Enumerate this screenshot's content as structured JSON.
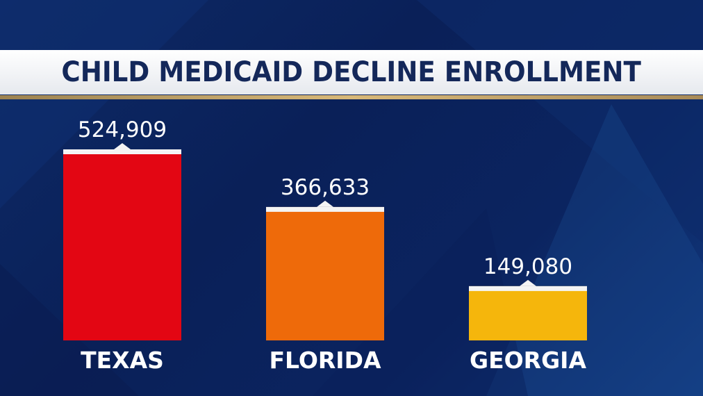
{
  "header": {
    "title": "CHILD MEDICAID DECLINE ENROLLMENT"
  },
  "chart_data": {
    "type": "bar",
    "title": "CHILD MEDICAID DECLINE ENROLLMENT",
    "categories": [
      "TEXAS",
      "FLORIDA",
      "GEORGIA"
    ],
    "values": [
      524909,
      366633,
      149080
    ],
    "value_labels": [
      "524,909",
      "366,633",
      "149,080"
    ],
    "colors": [
      "#e30613",
      "#ee6a0a",
      "#f5b60c"
    ],
    "ylim": [
      0,
      524909
    ],
    "grid": false,
    "legend": "none"
  }
}
